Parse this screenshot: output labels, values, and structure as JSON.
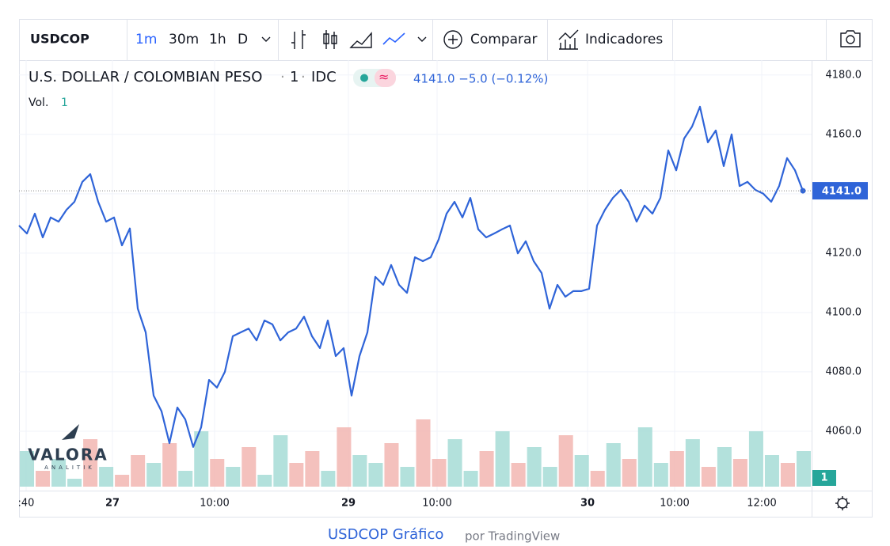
{
  "toolbar": {
    "symbol": "USDCOP",
    "intervals": [
      "1m",
      "30m",
      "1h",
      "D"
    ],
    "compare": "Comparar",
    "indicators": "Indicadores"
  },
  "legend": {
    "name": "U.S. DOLLAR / COLOMBIAN PESO",
    "interval": "1",
    "source": "IDC",
    "quote": "4141.0 −5.0 (−0.12%)",
    "volume_label": "Vol.",
    "volume_value": "1"
  },
  "chart_data": {
    "type": "line",
    "color": "#2f64d8",
    "grid": true,
    "x": [
      0,
      10,
      20,
      30,
      40,
      50,
      60,
      70,
      80,
      90,
      100,
      110,
      120,
      130,
      140,
      150,
      160,
      170,
      180,
      190,
      200,
      210,
      220,
      230,
      240,
      250,
      260,
      270,
      280,
      290,
      300,
      310,
      320,
      330,
      340,
      350,
      360,
      370,
      380,
      390,
      400,
      410,
      420,
      430,
      440,
      450,
      460,
      470,
      480,
      490,
      500,
      510,
      520,
      530,
      540,
      550,
      560,
      570,
      580,
      590,
      600,
      610,
      620,
      630,
      640,
      650,
      660,
      670,
      680,
      690,
      700,
      710,
      720,
      730,
      740,
      750,
      760,
      770,
      780,
      790,
      800,
      810,
      820,
      830,
      840,
      850,
      860,
      870,
      880,
      890,
      900,
      910,
      920,
      930,
      940,
      950,
      960,
      970,
      980,
      990
    ],
    "values": [
      4129.3,
      4126.6,
      4133.3,
      4125.3,
      4132,
      4130.6,
      4134.6,
      4137.3,
      4144,
      4146.6,
      4137.3,
      4130.6,
      4132,
      4122.6,
      4128.3,
      4101.3,
      4093.3,
      4072,
      4066.7,
      4056,
      4068,
      4064,
      4054.7,
      4061.3,
      4077.3,
      4074.7,
      4080,
      4092,
      4093.3,
      4094.6,
      4090.6,
      4097.3,
      4096,
      4090.6,
      4093.3,
      4094.6,
      4098.6,
      4092,
      4088,
      4097.3,
      4085.3,
      4088,
      4072,
      4085.3,
      4093.3,
      4112,
      4109.3,
      4116,
      4109.3,
      4106.6,
      4118.6,
      4117.3,
      4118.6,
      4124.6,
      4133.3,
      4137.3,
      4132,
      4138.6,
      4128,
      4125.3,
      4126.6,
      4128,
      4129.3,
      4119.9,
      4124,
      4117.3,
      4113.3,
      4101.3,
      4109.3,
      4105.3,
      4107.2,
      4107.2,
      4108,
      4129.3,
      4134.6,
      4138.6,
      4141.3,
      4137.3,
      4130.6,
      4136,
      4133.3,
      4138.6,
      4154.6,
      4147.9,
      4158.6,
      4162.6,
      4169.3,
      4157.3,
      4161.3,
      4149.3,
      4160,
      4142.6,
      4144,
      4141.3,
      4140,
      4137.3,
      4142.6,
      4152,
      4147.9,
      4141
    ],
    "xlim": [
      0,
      1001
    ],
    "ylim": [
      4040,
      4185
    ],
    "xticks": [
      {
        "value": 9,
        "label": ":40"
      },
      {
        "value": 118,
        "label": "27"
      },
      {
        "value": 247,
        "label": "10:00"
      },
      {
        "value": 416,
        "label": "29"
      },
      {
        "value": 528,
        "label": "10:00"
      },
      {
        "value": 718,
        "label": "30"
      },
      {
        "value": 828,
        "label": "10:00"
      },
      {
        "value": 938,
        "label": "12:00"
      }
    ],
    "yticks": [
      {
        "value": 4060,
        "label": "4060.0"
      },
      {
        "value": 4080,
        "label": "4080.0"
      },
      {
        "value": 4100,
        "label": "4100.0"
      },
      {
        "value": 4120,
        "label": "4120.0"
      },
      {
        "value": 4140,
        "label": "4140.0"
      },
      {
        "value": 4160,
        "label": "4160.0"
      },
      {
        "value": 4180,
        "label": "4180.0"
      }
    ],
    "last_price": {
      "value": 4141,
      "label": "4141.0"
    },
    "volume": {
      "vlim": [
        0,
        100
      ],
      "last_label": "1",
      "values": [
        45,
        20,
        35,
        10,
        60,
        25,
        15,
        40,
        30,
        55,
        20,
        70,
        35,
        25,
        50,
        15,
        65,
        30,
        45,
        20,
        75,
        40,
        30,
        55,
        25,
        85,
        35,
        60,
        20,
        45,
        70,
        30,
        50,
        25,
        65,
        40,
        20,
        55,
        35,
        75,
        30,
        45,
        60,
        25,
        50,
        35,
        70,
        40,
        30,
        45
      ],
      "colors": [
        "#a6dcd6",
        "#f2b6b1",
        "#a6dcd6",
        "#a6dcd6",
        "#f2b6b1",
        "#a6dcd6",
        "#f2b6b1",
        "#f2b6b1",
        "#a6dcd6",
        "#f2b6b1",
        "#a6dcd6",
        "#a6dcd6",
        "#f2b6b1",
        "#a6dcd6",
        "#f2b6b1",
        "#a6dcd6",
        "#a6dcd6",
        "#f2b6b1",
        "#f2b6b1",
        "#a6dcd6",
        "#f2b6b1",
        "#a6dcd6",
        "#a6dcd6",
        "#f2b6b1",
        "#a6dcd6",
        "#f2b6b1",
        "#f2b6b1",
        "#a6dcd6",
        "#a6dcd6",
        "#f2b6b1",
        "#a6dcd6",
        "#f2b6b1",
        "#a6dcd6",
        "#a6dcd6",
        "#f2b6b1",
        "#a6dcd6",
        "#f2b6b1",
        "#a6dcd6",
        "#f2b6b1",
        "#a6dcd6",
        "#a6dcd6",
        "#f2b6b1",
        "#a6dcd6",
        "#f2b6b1",
        "#a6dcd6",
        "#f2b6b1",
        "#a6dcd6",
        "#a6dcd6",
        "#f2b6b1",
        "#a6dcd6"
      ]
    }
  },
  "watermark": {
    "brand": "VALORA",
    "sub": "ANALITIK"
  },
  "footer": {
    "title": "USDCOP Gráfico",
    "by": "por TradingView"
  }
}
